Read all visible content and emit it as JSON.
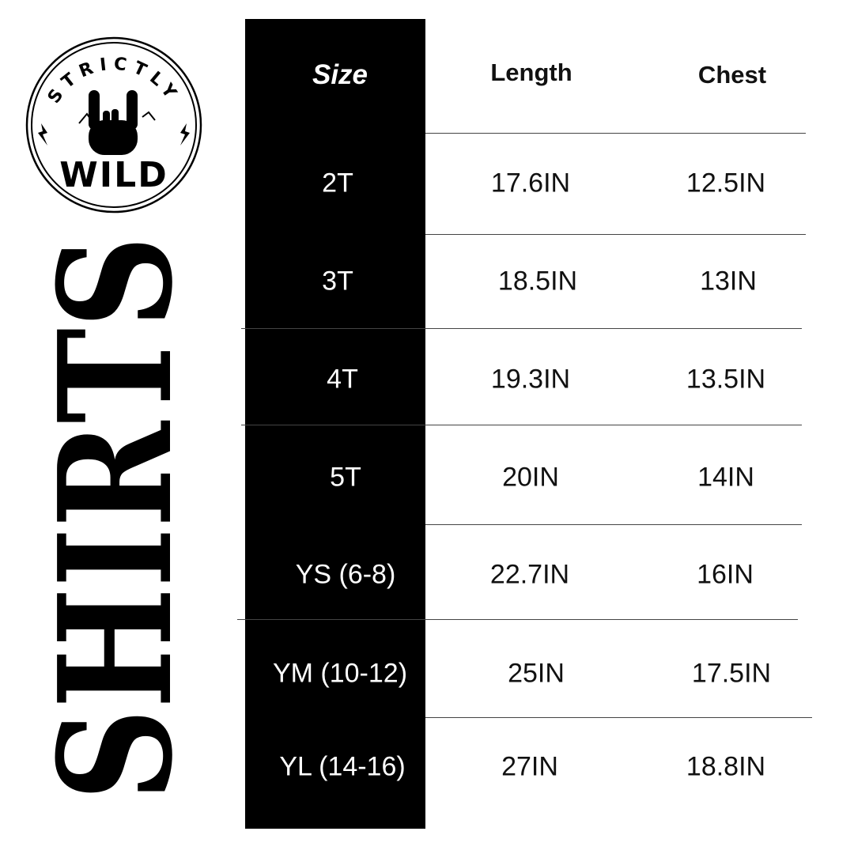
{
  "brand": {
    "logo_text_top": "STRICTLY",
    "logo_text_bottom": "WILD",
    "logo_icon": "rock-hand-icon"
  },
  "vertical_title": "SHIRTS",
  "colors": {
    "column_bg": "#000000",
    "column_text": "#ffffff",
    "text": "#111111"
  },
  "table": {
    "headers": [
      "Size",
      "Length",
      "Chest"
    ],
    "rows": [
      [
        "2T",
        "17.6IN",
        "12.5IN"
      ],
      [
        "3T",
        "18.5IN",
        "13IN"
      ],
      [
        "4T",
        "19.3IN",
        "13.5IN"
      ],
      [
        "5T",
        "20IN",
        "14IN"
      ],
      [
        "YS (6-8)",
        "22.7IN",
        "16IN"
      ],
      [
        "YM (10-12)",
        "25IN",
        "17.5IN"
      ],
      [
        "YL (14-16)",
        "27IN",
        "18.8IN"
      ]
    ]
  }
}
